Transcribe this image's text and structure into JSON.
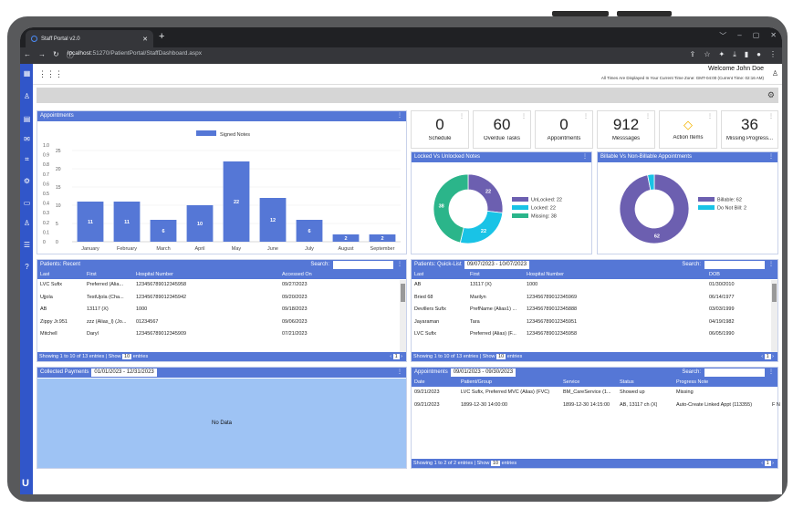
{
  "browser": {
    "tab_title": "Staff Portal v2.0",
    "tab_close": "✕",
    "new_tab": "+",
    "url_host": "localhost",
    "url_path": ":51270/PatientPortal/StaffDashboard.aspx",
    "window_controls": [
      "﹀",
      "–",
      "▢",
      "✕"
    ]
  },
  "header": {
    "welcome": "Welcome John Doe",
    "timezone_note": "All Times Are Displayed In Your Current Time Zone: GMT-04:00 (Current Time: 02:16 AM)"
  },
  "appointments_chart_panel": {
    "title": "Appointments",
    "menu": "⋮"
  },
  "chart_data": [
    {
      "type": "bar",
      "title": "Appointments",
      "categories": [
        "January",
        "February",
        "March",
        "April",
        "May",
        "June",
        "July",
        "August",
        "September"
      ],
      "series": [
        {
          "name": "Signed Notes",
          "values": [
            11,
            11,
            6,
            10,
            22,
            12,
            6,
            2,
            2
          ]
        }
      ],
      "left_axis_ticks": [
        "1.0",
        "0.9",
        "0.8",
        "0.7",
        "0.6",
        "0.5",
        "0.4",
        "0.3",
        "0.2",
        "0.1",
        "0"
      ],
      "right_axis_ticks": [
        "25",
        "20",
        "15",
        "10",
        "5",
        "0"
      ],
      "ylim": [
        0,
        25
      ],
      "legend_position": "top-center"
    },
    {
      "type": "pie",
      "title": "Locked Vs Unlocked Notes",
      "categories": [
        "UnLocked",
        "Locked",
        "Missing"
      ],
      "values": [
        22,
        22,
        38
      ],
      "legend": [
        "UnLocked: 22",
        "Locked: 22",
        "Missing: 38"
      ],
      "colors": [
        "#6c5fb0",
        "#19c3e6",
        "#2bb58a"
      ],
      "legend_position": "right"
    },
    {
      "type": "pie",
      "title": "Billable Vs Non-Billable Appointments",
      "categories": [
        "Billable",
        "Do Not Bill"
      ],
      "values": [
        62,
        2
      ],
      "legend": [
        "Billable: 62",
        "Do Not Bill: 2"
      ],
      "colors": [
        "#6c5fb0",
        "#19c3e6"
      ],
      "legend_position": "right"
    }
  ],
  "stats": [
    {
      "value": "0",
      "label": "Schedule"
    },
    {
      "value": "60",
      "label": "Overdue Tasks"
    },
    {
      "value": "0",
      "label": "Appointments"
    },
    {
      "value": "912",
      "label": "Messsages"
    },
    {
      "value": "",
      "label": "Action Items",
      "icon": "warning-icon"
    },
    {
      "value": "36",
      "label": "Missing Progress..."
    }
  ],
  "patients_recent": {
    "title": "Patients: Recent",
    "search_label": "Search:",
    "columns": [
      "Last",
      "First",
      "Hospital Number",
      "Accessed On"
    ],
    "rows": [
      [
        "LVC Sufix",
        "Preferred (Alia...",
        "123456789012345958",
        "09/27/2023"
      ],
      [
        "Ujjola",
        "TestUjola (Cha...",
        "123456789012345942",
        "09/20/2023"
      ],
      [
        "AB",
        "13117 (X)",
        "1000",
        "09/18/2023"
      ],
      [
        "Zippy Jr.951",
        "zzz (Alias_l) (Jo...",
        "01234567",
        "09/06/2023"
      ],
      [
        "Mitchell",
        "Daryl",
        "123456789012345909",
        "07/21/2023"
      ]
    ],
    "footer": "Showing 1 to 10 of 13 entries  |  Show",
    "show_count": "10",
    "entries_label": "entries",
    "page": "1"
  },
  "patients_quicklist": {
    "title": "Patients: Quick-List",
    "date_range": "09/07/2023 - 10/07/2023",
    "search_label": "Search:",
    "columns": [
      "Last",
      "First",
      "Hospital Number",
      "DOB"
    ],
    "rows": [
      [
        "AB",
        "13117 (X)",
        "1000",
        "01/30/2010"
      ],
      [
        "Bried 68",
        "Marilyn",
        "123456789012345969",
        "06/14/1977"
      ],
      [
        "Devillers Sufix",
        "PrefName (Alias1) ...",
        "123456789012345888",
        "03/03/1999"
      ],
      [
        "Jayaraman",
        "Tara",
        "123456789012345951",
        "04/19/1982"
      ],
      [
        "LVC Sufix",
        "Preferred (Alias) (F...",
        "123456789012345958",
        "06/05/1990"
      ]
    ],
    "footer": "Showing 1 to 10 of 13 entries  |  Show",
    "show_count": "10",
    "entries_label": "entries",
    "page": "1"
  },
  "collected_payments": {
    "title": "Collected Payments",
    "date_range": "01/01/2023 - 12/31/2023",
    "empty_text": "No Data"
  },
  "appointments_table": {
    "title": "Appointments",
    "date_range": "09/01/2023 - 09/30/2023",
    "search_label": "Search:",
    "columns": [
      "Date",
      "Patient/Group",
      "Service",
      "Status",
      "Progress Note"
    ],
    "rows": [
      [
        "09/21/2023",
        "LVC Sufix, Preferred MVC (Alias) (FVC)",
        "BM_CareService (1...",
        "Showed up",
        "Missing",
        ""
      ],
      [
        "09/21/2023",
        "1899-12-30 14:00:00",
        "1899-12-30 14:15:00",
        "AB, 13117 ch (X)",
        "Auto-Create Linked Appt (113355)",
        "F N"
      ]
    ],
    "footer": "Showing 1 to 2 of 2 entries  |  Show",
    "show_count": "10",
    "entries_label": "entries",
    "page": "1"
  }
}
